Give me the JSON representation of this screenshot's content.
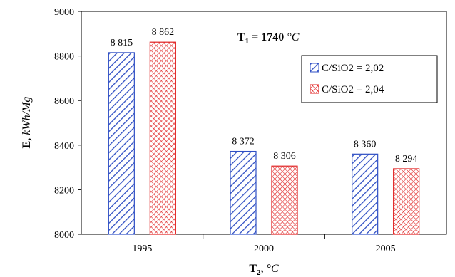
{
  "chart_data": {
    "type": "bar",
    "categories": [
      "1995",
      "2000",
      "2005"
    ],
    "series": [
      {
        "name": "C/SiO2 = 2,02",
        "values": [
          8815,
          8372,
          8360
        ],
        "labels": [
          "8 815",
          "8 372",
          "8 360"
        ],
        "color": "#2f4fc4",
        "pattern": "diagonal-hatch"
      },
      {
        "name": "C/SiO2 = 2,04",
        "values": [
          8862,
          8306,
          8294
        ],
        "labels": [
          "8 862",
          "8 306",
          "8 294"
        ],
        "color": "#e02020",
        "pattern": "crosshatch"
      }
    ],
    "ylim": [
      8000,
      9000
    ],
    "yticks": [
      8000,
      8200,
      8400,
      8600,
      8800,
      9000
    ],
    "ylabel": {
      "main": "E, ",
      "unit": "kWh/Mg"
    },
    "xlabel": {
      "main": "T",
      "sub": "2",
      "sep": ", ",
      "unit": "°C"
    },
    "annotation": {
      "main": "T",
      "sub": "1",
      "value": " = 1740 ",
      "unit": "°C"
    },
    "grid": false,
    "legend_position": "right"
  }
}
